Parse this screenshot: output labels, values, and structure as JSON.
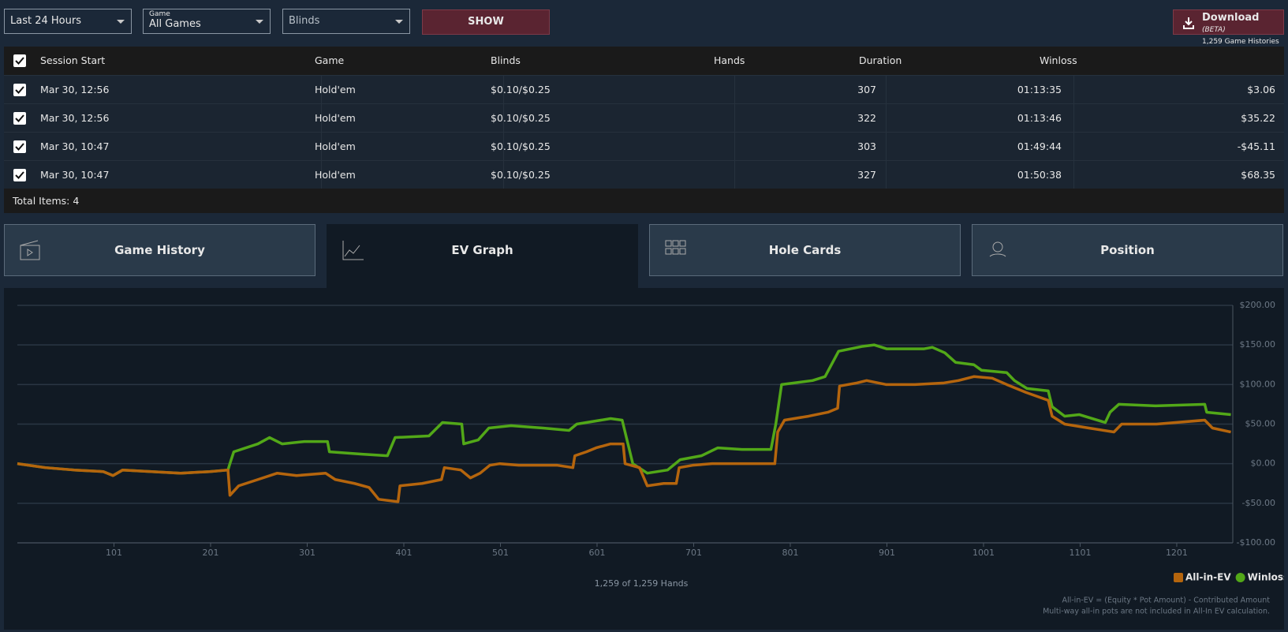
{
  "filters": {
    "period": "Last 24 Hours",
    "game_label": "Game",
    "game": "All Games",
    "blinds": "Blinds",
    "show": "SHOW"
  },
  "download": {
    "title": "Download",
    "badge": "(BETA)",
    "subtitle": "1,259 Game Histories"
  },
  "table": {
    "columns": [
      "Session Start",
      "Game",
      "Blinds",
      "Hands",
      "Duration",
      "Winloss"
    ],
    "rows": [
      [
        "Mar 30, 12:56",
        "Hold'em",
        "$0.10/$0.25",
        "307",
        "01:13:35",
        "$3.06"
      ],
      [
        "Mar 30, 12:56",
        "Hold'em",
        "$0.10/$0.25",
        "322",
        "01:13:46",
        "$35.22"
      ],
      [
        "Mar 30, 10:47",
        "Hold'em",
        "$0.10/$0.25",
        "303",
        "01:49:44",
        "-$45.11"
      ],
      [
        "Mar 30, 10:47",
        "Hold'em",
        "$0.10/$0.25",
        "327",
        "01:50:38",
        "$68.35"
      ]
    ],
    "total": "Total Items: 4"
  },
  "tabs": [
    "Game History",
    "EV Graph",
    "Hole Cards",
    "Position"
  ],
  "chart_data": {
    "type": "line",
    "xlabel": "1,259 of 1,259 Hands",
    "notes": [
      "All-in-EV = (Equity * Pot Amount) - Contributed Amount",
      "Multi-way all-in pots are not included in All-In EV calculation."
    ],
    "xlim": [
      1,
      1259
    ],
    "xticks": [
      101,
      201,
      301,
      401,
      501,
      601,
      701,
      801,
      901,
      1001,
      1101,
      1201
    ],
    "ylim": [
      -100,
      200
    ],
    "yticks": [
      {
        "value": -100,
        "label": "-$100.00"
      },
      {
        "value": -50,
        "label": "-$50.00"
      },
      {
        "value": 0,
        "label": "$0.00"
      },
      {
        "value": 50,
        "label": "$50.00"
      },
      {
        "value": 100,
        "label": "$100.00"
      },
      {
        "value": 150,
        "label": "$150.00"
      },
      {
        "value": 200,
        "label": "$200.00"
      }
    ],
    "grid": true,
    "legend": "bottom-right",
    "series": [
      {
        "name": "All-in-EV",
        "color": "#b5650d",
        "x": [
          1,
          30,
          60,
          90,
          100,
          110,
          140,
          170,
          200,
          219,
          221,
          230,
          250,
          270,
          290,
          320,
          330,
          350,
          365,
          375,
          395,
          397,
          420,
          440,
          443,
          460,
          470,
          480,
          490,
          500,
          520,
          560,
          576,
          578,
          590,
          600,
          615,
          628,
          630,
          645,
          653,
          670,
          683,
          686,
          700,
          720,
          760,
          785,
          788,
          795,
          820,
          840,
          850,
          852,
          870,
          880,
          900,
          930,
          960,
          975,
          991,
          1010,
          1025,
          1045,
          1068,
          1072,
          1085,
          1110,
          1136,
          1144,
          1180,
          1230,
          1238,
          1257
        ],
        "values": [
          0,
          -5,
          -8,
          -10,
          -15,
          -8,
          -10,
          -12,
          -10,
          -8,
          -40,
          -28,
          -20,
          -12,
          -15,
          -12,
          -20,
          -25,
          -30,
          -45,
          -48,
          -28,
          -25,
          -20,
          -5,
          -8,
          -18,
          -12,
          -2,
          0,
          -2,
          -2,
          -5,
          10,
          15,
          20,
          25,
          25,
          0,
          -5,
          -28,
          -25,
          -25,
          -5,
          -2,
          0,
          0,
          0,
          40,
          55,
          60,
          65,
          70,
          98,
          102,
          105,
          100,
          100,
          102,
          105,
          110,
          108,
          100,
          90,
          80,
          60,
          50,
          45,
          40,
          50,
          50,
          55,
          45,
          40
        ]
      },
      {
        "name": "Winloss",
        "color": "#52a818",
        "x": [
          1,
          30,
          60,
          90,
          100,
          110,
          140,
          170,
          200,
          219,
          221,
          225,
          250,
          262,
          275,
          298,
          322,
          324,
          358,
          384,
          392,
          427,
          441,
          461,
          463,
          478,
          489,
          512,
          545,
          572,
          580,
          615,
          627,
          638,
          653,
          674,
          687,
          709,
          726,
          751,
          781,
          786,
          792,
          824,
          837,
          851,
          875,
          888,
          901,
          939,
          948,
          961,
          972,
          991,
          999,
          1025,
          1033,
          1046,
          1068,
          1072,
          1085,
          1100,
          1127,
          1132,
          1141,
          1179,
          1230,
          1232,
          1257
        ],
        "values": [
          0,
          -5,
          -8,
          -10,
          -15,
          -8,
          -10,
          -12,
          -10,
          -8,
          0,
          15,
          25,
          33,
          25,
          28,
          28,
          15,
          12,
          10,
          33,
          35,
          52,
          50,
          25,
          30,
          45,
          48,
          45,
          42,
          50,
          57,
          55,
          0,
          -12,
          -8,
          5,
          10,
          20,
          18,
          18,
          50,
          100,
          105,
          110,
          142,
          148,
          150,
          145,
          145,
          147,
          140,
          128,
          125,
          118,
          115,
          105,
          95,
          92,
          72,
          60,
          62,
          52,
          65,
          75,
          73,
          75,
          65,
          62
        ]
      }
    ]
  }
}
